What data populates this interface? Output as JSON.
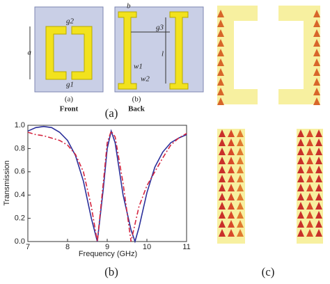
{
  "figure": {
    "front_labels": [
      "g2",
      "a",
      "g1",
      "(a)"
    ],
    "front_caption": "Front",
    "back_labels": [
      "b",
      "g3",
      "l",
      "w1",
      "w2",
      "(b)"
    ],
    "back_caption": "Back",
    "panel_a": "(a)",
    "panel_b": "(b)",
    "panel_c": "(c)"
  },
  "chart_data": {
    "type": "line",
    "xlabel": "Frequency (GHz)",
    "ylabel": "Transmission",
    "x": [
      7,
      7.2,
      7.4,
      7.6,
      7.8,
      8,
      8.2,
      8.4,
      8.6,
      8.75,
      8.9,
      9,
      9.1,
      9.2,
      9.4,
      9.6,
      9.7,
      9.8,
      10,
      10.2,
      10.4,
      10.6,
      10.8,
      11
    ],
    "series": [
      {
        "color": "#2b2f9a",
        "style": "solid",
        "values": [
          0.95,
          0.98,
          0.99,
          0.98,
          0.94,
          0.87,
          0.74,
          0.52,
          0.2,
          0.0,
          0.45,
          0.8,
          0.95,
          0.85,
          0.4,
          0.1,
          0.0,
          0.12,
          0.42,
          0.64,
          0.77,
          0.85,
          0.89,
          0.92
        ]
      },
      {
        "color": "#d4253f",
        "style": "dashdot",
        "values": [
          0.94,
          0.92,
          0.91,
          0.89,
          0.87,
          0.83,
          0.75,
          0.6,
          0.3,
          0.0,
          0.5,
          0.85,
          0.95,
          0.9,
          0.5,
          0.0,
          0.15,
          0.3,
          0.48,
          0.6,
          0.72,
          0.83,
          0.89,
          0.93
        ]
      }
    ],
    "xlim": [
      7,
      11
    ],
    "xticks": [
      7,
      8,
      9,
      10,
      11
    ],
    "ylim": [
      0,
      1
    ],
    "yticks": [
      {
        "value": 0,
        "label": "0.0"
      },
      {
        "value": 0.2,
        "label": "0.2"
      },
      {
        "value": 0.4,
        "label": "0.4"
      },
      {
        "value": 0.6,
        "label": "0.6"
      },
      {
        "value": 0.8,
        "label": "0.8"
      },
      {
        "value": 1,
        "label": "1.0"
      }
    ]
  }
}
